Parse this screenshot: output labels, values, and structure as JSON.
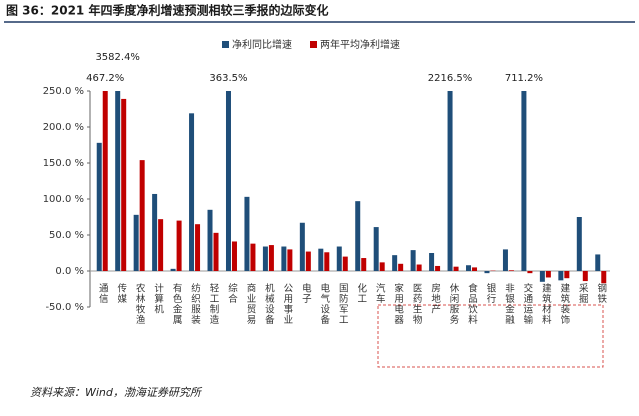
{
  "chart_data": {
    "type": "bar",
    "title": "图 36：2021 年四季度净利增速预测相较三季报的边际变化",
    "source": "资料来源：Wind，渤海证券研究所",
    "categories": [
      "通信",
      "传媒",
      "农林牧渔",
      "计算机",
      "有色金属",
      "纺织服装",
      "轻工制造",
      "综合",
      "商业贸易",
      "机械设备",
      "公用事业",
      "电子",
      "电气设备",
      "国防军工",
      "化工",
      "汽车",
      "家用电器",
      "医药生物",
      "房地产",
      "休闲服务",
      "食品饮料",
      "银行",
      "非银金融",
      "交通运输",
      "建筑材料",
      "建筑装饰",
      "采掘",
      "钢铁"
    ],
    "series": [
      {
        "name": "净利同比增速",
        "color": "#1f4e79",
        "values": [
          178,
          3582.4,
          78,
          107,
          3,
          219,
          85,
          363.5,
          103,
          34,
          34,
          67,
          31,
          34,
          97,
          61,
          22,
          29,
          25,
          2216.5,
          8,
          -3,
          30,
          711.2,
          -15,
          -13,
          75,
          23
        ],
        "value_labels": [
          null,
          "3582.4%",
          null,
          null,
          null,
          null,
          null,
          "363.5%",
          null,
          null,
          null,
          null,
          null,
          null,
          null,
          null,
          null,
          null,
          null,
          "2216.5%",
          null,
          null,
          null,
          "711.2%",
          null,
          null,
          null,
          null
        ]
      },
      {
        "name": "两年平均净利增速",
        "color": "#c00000",
        "values": [
          467.2,
          239,
          154,
          72,
          70,
          65,
          53,
          41,
          38,
          36,
          30,
          27,
          26,
          20,
          18,
          12,
          10,
          9,
          7,
          6,
          5,
          0.5,
          1,
          -3,
          -9,
          -10,
          -14,
          -17
        ],
        "value_labels": [
          "467.2%",
          null,
          null,
          null,
          null,
          null,
          null,
          null,
          null,
          null,
          null,
          null,
          null,
          null,
          null,
          null,
          null,
          null,
          null,
          null,
          null,
          null,
          null,
          null,
          null,
          null,
          null,
          null
        ]
      }
    ],
    "ylim": [
      -50,
      250
    ],
    "yticks": [
      {
        "value": -50,
        "label": "-50.0 %"
      },
      {
        "value": 0,
        "label": "0.0 %"
      },
      {
        "value": 50,
        "label": "50.0 %"
      },
      {
        "value": 100,
        "label": "100.0 %"
      },
      {
        "value": 150,
        "label": "150.0 %"
      },
      {
        "value": 200,
        "label": "200.0 %"
      },
      {
        "value": 250,
        "label": "250.0 %"
      }
    ]
  }
}
